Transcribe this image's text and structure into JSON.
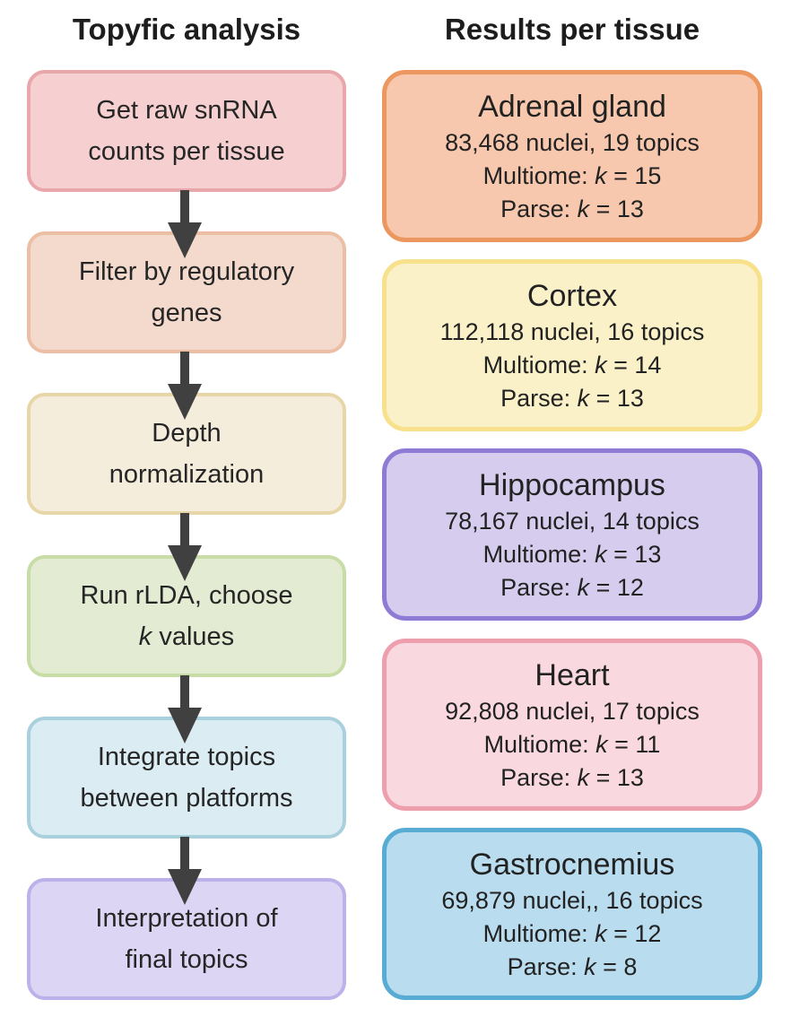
{
  "titles": {
    "left": "Topyfic analysis",
    "right": "Results per tissue"
  },
  "steps": [
    {
      "line1": "Get raw snRNA",
      "line2": "counts per tissue",
      "fill": "#f6d0d1",
      "border": "#e8a7ab"
    },
    {
      "line1": "Filter by regulatory",
      "line2": "genes",
      "fill": "#f4dacd",
      "border": "#ebbfa6"
    },
    {
      "line1": "Depth",
      "line2": "normalization",
      "fill": "#f5eddb",
      "border": "#e7d7a8"
    },
    {
      "line1": "Run rLDA, choose",
      "line2_k": "k",
      "line2_rest": " values",
      "fill": "#e3ecd3",
      "border": "#c8dca8"
    },
    {
      "line1": "Integrate topics",
      "line2": "between platforms",
      "fill": "#dbecf3",
      "border": "#a8d0dd"
    },
    {
      "line1": "Interpretation of",
      "line2": "final topics",
      "fill": "#dcd5f3",
      "border": "#bdb1ea"
    }
  ],
  "tissues": [
    {
      "name": "Adrenal gland",
      "stats": "83,468 nuclei, 19 topics",
      "multiome_label": "Multiome: ",
      "multiome_k": "k",
      "multiome_val": " = 15",
      "parse_label": "Parse: ",
      "parse_k": "k",
      "parse_val": " = 13",
      "fill": "#f7c8ad",
      "border": "#ec975f"
    },
    {
      "name": "Cortex",
      "stats": "112,118 nuclei, 16 topics",
      "multiome_label": "Multiome: ",
      "multiome_k": "k",
      "multiome_val": " = 14",
      "parse_label": "Parse: ",
      "parse_k": "k",
      "parse_val": " = 13",
      "fill": "#fbf1c8",
      "border": "#f8e18c"
    },
    {
      "name": "Hippocampus",
      "stats": "78,167 nuclei, 14 topics",
      "multiome_label": "Multiome: ",
      "multiome_k": "k",
      "multiome_val": " = 13",
      "parse_label": "Parse: ",
      "parse_k": "k",
      "parse_val": " = 12",
      "fill": "#d6cdee",
      "border": "#8f7bd5"
    },
    {
      "name": "Heart",
      "stats": "92,808 nuclei, 17 topics",
      "multiome_label": "Multiome: ",
      "multiome_k": "k",
      "multiome_val": " = 11",
      "parse_label": "Parse: ",
      "parse_k": "k",
      "parse_val": " = 13",
      "fill": "#f9d9df",
      "border": "#ed9fae"
    },
    {
      "name": "Gastrocnemius",
      "stats": "69,879 nuclei,, 16 topics",
      "multiome_label": "Multiome: ",
      "multiome_k": "k",
      "multiome_val": " = 12",
      "parse_label": "Parse: ",
      "parse_k": "k",
      "parse_val": " = 8",
      "fill": "#b9dcee",
      "border": "#58acd4"
    }
  ],
  "colors": {
    "arrow": "#404040"
  }
}
